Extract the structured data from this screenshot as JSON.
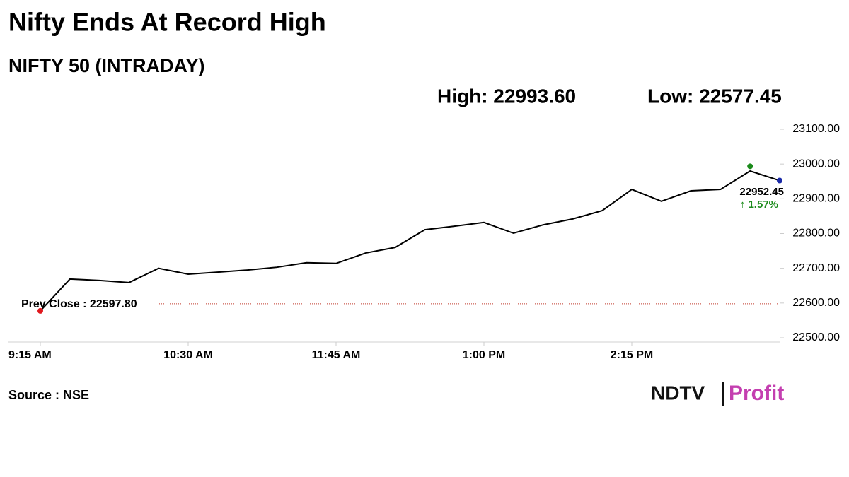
{
  "chart_data": {
    "type": "line",
    "title": "Nifty Ends At Record High",
    "subtitle": "NIFTY 50 (INTRADAY)",
    "high": {
      "value": 22993.6,
      "label": "High: 22993.60"
    },
    "low": {
      "value": 22577.45,
      "label": "Low: 22577.45"
    },
    "prev_close": {
      "value": 22597.8,
      "label": "Prev Close : 22597.80"
    },
    "last": {
      "value": 22952.45,
      "label": "22952.45"
    },
    "change": {
      "value": 1.57,
      "label": "↑ 1.57%"
    },
    "x": [
      "9:15 AM",
      "9:30 AM",
      "9:45 AM",
      "10:00 AM",
      "10:15 AM",
      "10:30 AM",
      "10:45 AM",
      "11:00 AM",
      "11:15 AM",
      "11:30 AM",
      "11:45 AM",
      "12:00 PM",
      "12:15 PM",
      "12:30 PM",
      "12:45 PM",
      "1:00 PM",
      "1:15 PM",
      "1:30 PM",
      "1:45 PM",
      "2:00 PM",
      "2:15 PM",
      "2:30 PM",
      "2:45 PM",
      "3:00 PM",
      "3:15 PM",
      "3:30 PM"
    ],
    "series": [
      {
        "name": "NIFTY 50",
        "color": "#000000",
        "values": [
          22577.45,
          22669,
          22665,
          22659,
          22700,
          22683,
          22689,
          22695,
          22703,
          22716,
          22714,
          22744,
          22760,
          22811,
          22821,
          22832,
          22801,
          22825,
          22842,
          22866,
          22927,
          22893,
          22923,
          22927,
          22980,
          22952.45
        ]
      }
    ],
    "xticks": [
      "9:15 AM",
      "10:30 AM",
      "11:45 AM",
      "1:00 PM",
      "2:15 PM"
    ],
    "ylim": [
      22500,
      23100
    ],
    "yticks": [
      {
        "value": 22500,
        "label": "22500.00"
      },
      {
        "value": 22600,
        "label": "22600.00"
      },
      {
        "value": 22700,
        "label": "22700.00"
      },
      {
        "value": 22800,
        "label": "22800.00"
      },
      {
        "value": 22900,
        "label": "22900.00"
      },
      {
        "value": 23000,
        "label": "23000.00"
      },
      {
        "value": 23100,
        "label": "23100.00"
      }
    ],
    "source": "Source : NSE",
    "logo": [
      "NDTV",
      "Profit"
    ]
  }
}
